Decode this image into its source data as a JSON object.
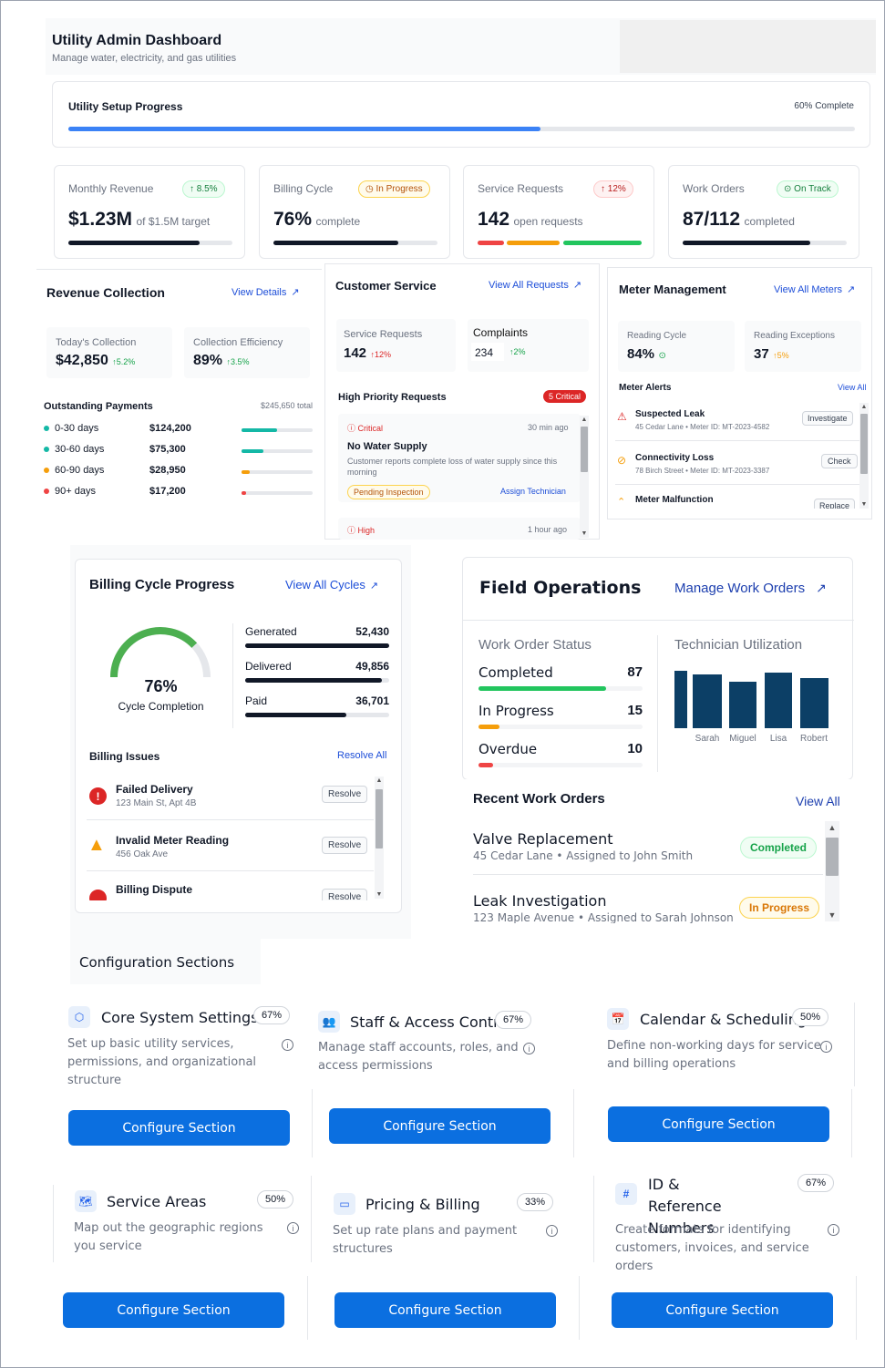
{
  "header": {
    "title": "Utility Admin Dashboard",
    "subtitle": "Manage water, electricity, and gas utilities"
  },
  "setup": {
    "title": "Utility Setup Progress",
    "status": "60% Complete",
    "progress": 0.6
  },
  "stats": [
    {
      "label": "Monthly Revenue",
      "badge": "8.5%",
      "value": "$1.23M",
      "suffix": "of $1.5M target",
      "progress": 0.8
    },
    {
      "label": "Billing Cycle",
      "badge": "In Progress",
      "value": "76%",
      "suffix": "complete",
      "progress": 0.76
    },
    {
      "label": "Service Requests",
      "badge": "12%",
      "value": "142",
      "suffix": "open requests"
    },
    {
      "label": "Work Orders",
      "badge": "On Track",
      "value": "87/112",
      "suffix": "completed",
      "progress": 0.78
    }
  ],
  "revenue": {
    "title": "Revenue Collection",
    "link": "View Details",
    "today_label": "Today's Collection",
    "today_value": "$42,850",
    "today_change": "5.2%",
    "eff_label": "Collection Efficiency",
    "eff_value": "89%",
    "eff_change": "3.5%",
    "outstanding_title": "Outstanding Payments",
    "outstanding_total": "$245,650 total",
    "rows": [
      {
        "label": "0-30 days",
        "amount": "$124,200",
        "color": "#14b8a6",
        "fraction": 0.5
      },
      {
        "label": "30-60 days",
        "amount": "$75,300",
        "color": "#14b8a6",
        "fraction": 0.31
      },
      {
        "label": "60-90 days",
        "amount": "$28,950",
        "color": "#f59e0b",
        "fraction": 0.12
      },
      {
        "label": "90+ days",
        "amount": "$17,200",
        "color": "#ef4444",
        "fraction": 0.07
      }
    ]
  },
  "customer": {
    "title": "Customer Service",
    "link": "View All Requests",
    "sr_label": "Service Requests",
    "sr_value": "142",
    "sr_change": "12%",
    "comp_label": "Complaints",
    "comp_value": "234",
    "comp_change": "2%",
    "hp_title": "High Priority Requests",
    "critical_badge": "5 Critical",
    "req1": {
      "priority": "Critical",
      "time": "30 min ago",
      "title": "No Water Supply",
      "desc": "Customer reports complete loss of water supply since this morning",
      "status": "Pending Inspection",
      "action": "Assign Technician"
    },
    "req2": {
      "priority": "High",
      "time": "1 hour ago"
    }
  },
  "meter": {
    "title": "Meter Management",
    "link": "View All Meters",
    "rc_label": "Reading Cycle",
    "rc_value": "84%",
    "re_label": "Reading Exceptions",
    "re_value": "37",
    "re_change": "5%",
    "alerts_title": "Meter Alerts",
    "alerts_link": "View All",
    "alerts": [
      {
        "title": "Suspected Leak",
        "sub": "45 Cedar Lane • Meter ID: MT-2023-4582",
        "action": "Investigate"
      },
      {
        "title": "Connectivity Loss",
        "sub": "78 Birch Street • Meter ID: MT-2023-3387",
        "action": "Check"
      },
      {
        "title": "Meter Malfunction",
        "action": "Replace"
      }
    ]
  },
  "billing": {
    "title": "Billing Cycle Progress",
    "link": "View All Cycles",
    "gauge_value": "76%",
    "gauge_label": "Cycle Completion",
    "gauge_fraction": 0.76,
    "stats": [
      {
        "label": "Generated",
        "value": "52,430",
        "fraction": 1.0
      },
      {
        "label": "Delivered",
        "value": "49,856",
        "fraction": 0.95
      },
      {
        "label": "Paid",
        "value": "36,701",
        "fraction": 0.7
      }
    ],
    "issues_title": "Billing Issues",
    "issues_link": "Resolve All",
    "issues": [
      {
        "title": "Failed Delivery",
        "sub": "123 Main St, Apt 4B",
        "action": "Resolve"
      },
      {
        "title": "Invalid Meter Reading",
        "sub": "456 Oak Ave",
        "action": "Resolve"
      },
      {
        "title": "Billing Dispute",
        "action": "Resolve"
      }
    ]
  },
  "field": {
    "title": "Field Operations",
    "link": "Manage Work Orders",
    "wo_title": "Work Order Status",
    "wo": [
      {
        "label": "Completed",
        "value": "87",
        "color": "#22c55e",
        "fraction": 0.78
      },
      {
        "label": "In Progress",
        "value": "15",
        "color": "#f59e0b",
        "fraction": 0.13
      },
      {
        "label": "Overdue",
        "value": "10",
        "color": "#ef4444",
        "fraction": 0.09
      }
    ],
    "tech_title": "Technician Utilization",
    "tech_labels": [
      "Sarah",
      "Miguel",
      "Lisa",
      "Robert"
    ],
    "recent_title": "Recent Work Orders",
    "recent_link": "View All",
    "recent": [
      {
        "title": "Valve Replacement",
        "sub": "45 Cedar Lane • Assigned to John Smith",
        "status": "Completed"
      },
      {
        "title": "Leak Investigation",
        "sub": "123 Maple Avenue • Assigned to Sarah Johnson",
        "status": "In Progress"
      }
    ]
  },
  "config": {
    "section_title": "Configuration Sections",
    "button_label": "Configure Section",
    "items": [
      {
        "title": "Core System Settings",
        "pct": "67%",
        "desc": "Set up basic utility services, permissions, and organizational structure",
        "icon": "shield-icon"
      },
      {
        "title": "Staff & Access Control",
        "pct": "67%",
        "desc": "Manage staff accounts, roles, and access permissions",
        "icon": "users-icon"
      },
      {
        "title": "Calendar & Scheduling",
        "pct": "50%",
        "desc": "Define non-working days for service and billing operations",
        "icon": "calendar-icon"
      },
      {
        "title": "Service Areas",
        "pct": "50%",
        "desc": "Map out the geographic regions you service",
        "icon": "map-icon"
      },
      {
        "title": "Pricing & Billing",
        "pct": "33%",
        "desc": "Set up rate plans and payment structures",
        "icon": "credit-card-icon"
      },
      {
        "title": "ID & Reference Numbers",
        "pct": "67%",
        "desc": "Create formats for identifying customers, invoices, and service orders",
        "icon": "hash-icon"
      }
    ]
  }
}
